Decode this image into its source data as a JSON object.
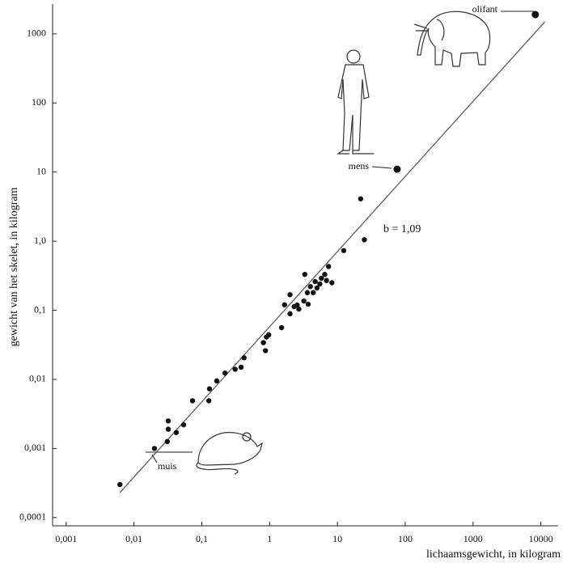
{
  "chart_data": {
    "type": "scatter",
    "xlabel": "lichaamsgewicht, in kilogram",
    "ylabel": "gewicht van het skelet, in kilogram",
    "xscale": "log",
    "yscale": "log",
    "xlim": [
      0.00063,
      18000
    ],
    "ylim": [
      7.6e-05,
      2700
    ],
    "xticks": [
      {
        "value": 0.001,
        "label": "0,001"
      },
      {
        "value": 0.01,
        "label": "0,01"
      },
      {
        "value": 0.1,
        "label": "0,1"
      },
      1,
      10,
      100,
      1000,
      10000
    ],
    "yticks": [
      {
        "value": 0.0001,
        "label": "0,0001"
      },
      {
        "value": 0.001,
        "label": "0,001"
      },
      {
        "value": 0.01,
        "label": "0,01"
      },
      {
        "value": 0.1,
        "label": "0,1"
      },
      {
        "value": 1,
        "label": "1,0"
      },
      10,
      100,
      1000
    ],
    "color": "#111",
    "x": [
      0.0062,
      0.02,
      0.031,
      0.032,
      0.032,
      0.042,
      0.054,
      0.073,
      0.127,
      0.13,
      0.166,
      0.22,
      0.31,
      0.38,
      0.42,
      0.81,
      0.87,
      0.9,
      0.97,
      1.5,
      1.66,
      2.0,
      2.0,
      2.3,
      2.55,
      2.7,
      3.2,
      3.3,
      3.6,
      3.7,
      4.0,
      4.4,
      4.7,
      5.0,
      5.5,
      5.8,
      6.5,
      6.9,
      7.4,
      8.3,
      12.4,
      22,
      25,
      76,
      8300
    ],
    "values": [
      0.0003,
      0.001,
      0.00126,
      0.0025,
      0.0019,
      0.0017,
      0.0022,
      0.0049,
      0.0049,
      0.0073,
      0.0095,
      0.0123,
      0.014,
      0.015,
      0.0205,
      0.034,
      0.026,
      0.041,
      0.044,
      0.056,
      0.12,
      0.168,
      0.089,
      0.113,
      0.119,
      0.104,
      0.136,
      0.33,
      0.18,
      0.122,
      0.22,
      0.18,
      0.26,
      0.21,
      0.24,
      0.29,
      0.33,
      0.27,
      0.43,
      0.25,
      0.73,
      4.1,
      1.05,
      11,
      1900
    ],
    "fit_line": {
      "label": "b = 1,09",
      "x": [
        0.0062,
        11500
      ],
      "values": [
        0.00023,
        1500
      ]
    },
    "annotations": [
      "olifant",
      "mens",
      "muis"
    ]
  }
}
